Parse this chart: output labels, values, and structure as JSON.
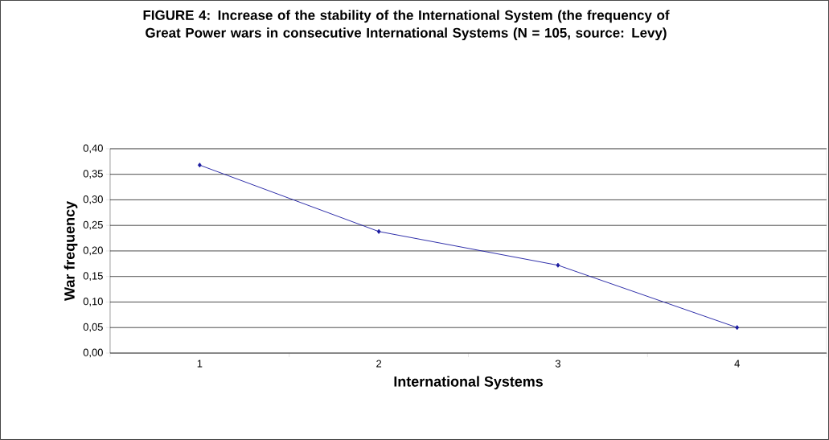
{
  "chart_data": {
    "type": "line",
    "title": "FIGURE 4: Increase of the stability of the International System (the frequency of Great Power wars in consecutive International Systems (N = 105, source: Levy)",
    "xlabel": "International Systems",
    "ylabel": "War frequency",
    "categories": [
      "1",
      "2",
      "3",
      "4"
    ],
    "series": [
      {
        "color": "#1a1aa0",
        "values": [
          0.368,
          0.238,
          0.172,
          0.05
        ]
      }
    ],
    "ylim": [
      0,
      0.4
    ],
    "yticks": [
      {
        "value": 0,
        "label": "0,00"
      },
      {
        "value": 0.05,
        "label": "0,05"
      },
      {
        "value": 0.1,
        "label": "0,10"
      },
      {
        "value": 0.15,
        "label": "0,15"
      },
      {
        "value": 0.2,
        "label": "0,20"
      },
      {
        "value": 0.25,
        "label": "0,25"
      },
      {
        "value": 0.3,
        "label": "0,30"
      },
      {
        "value": 0.35,
        "label": "0,35"
      },
      {
        "value": 0.4,
        "label": "0,40"
      }
    ],
    "grid": "y",
    "marker": "diamond",
    "line_style": "solid"
  }
}
